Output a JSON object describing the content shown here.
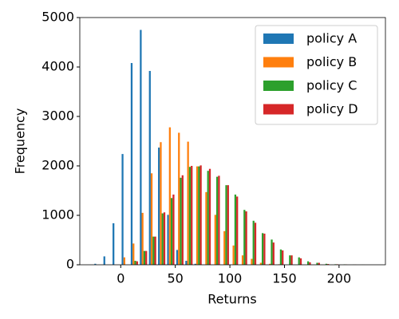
{
  "chart_data": {
    "type": "histogram",
    "x_label": "Returns",
    "y_label": "Frequency",
    "bins": [
      -25,
      -16.67,
      -8.33,
      0,
      8.33,
      16.67,
      25,
      33.33,
      41.67,
      50,
      58.33,
      66.67,
      75,
      83.33,
      91.67,
      100,
      108.33,
      116.67,
      125,
      133.33,
      141.67,
      150,
      158.33,
      166.67,
      175,
      183.33,
      191.67,
      200,
      208.33,
      216.67,
      225
    ],
    "series": [
      {
        "name": "policy A",
        "color": "#1f77b4",
        "values": [
          20,
          170,
          840,
          2240,
          4080,
          4750,
          3920,
          2370,
          1010,
          300,
          80,
          20,
          0,
          0,
          0,
          0,
          0,
          0,
          0,
          0,
          0,
          0,
          0,
          0,
          0,
          0,
          0,
          0,
          0,
          0
        ]
      },
      {
        "name": "policy B",
        "color": "#ff7f0e",
        "values": [
          0,
          0,
          0,
          150,
          430,
          1050,
          1850,
          2480,
          2780,
          2670,
          2490,
          1990,
          1470,
          1010,
          680,
          390,
          190,
          120,
          40,
          20,
          10,
          0,
          0,
          0,
          0,
          0,
          0,
          0,
          0,
          0
        ]
      },
      {
        "name": "policy C",
        "color": "#2ca02c",
        "values": [
          0,
          0,
          0,
          0,
          80,
          280,
          570,
          1040,
          1350,
          1760,
          1980,
          1990,
          1900,
          1780,
          1610,
          1420,
          1110,
          890,
          640,
          510,
          310,
          190,
          150,
          70,
          40,
          20,
          10,
          8,
          3,
          2
        ]
      },
      {
        "name": "policy D",
        "color": "#d62728",
        "values": [
          0,
          0,
          0,
          0,
          70,
          280,
          570,
          1060,
          1420,
          1810,
          2000,
          2010,
          1940,
          1800,
          1610,
          1380,
          1080,
          850,
          630,
          450,
          290,
          190,
          130,
          50,
          40,
          15,
          10,
          5,
          3,
          1
        ]
      }
    ],
    "xlim": [
      -37.5,
      242.5
    ],
    "ylim": [
      0,
      5000
    ],
    "xticks": [
      0,
      50,
      100,
      150,
      200
    ],
    "yticks": [
      0,
      1000,
      2000,
      3000,
      4000,
      5000
    ],
    "legend": "upper right"
  }
}
